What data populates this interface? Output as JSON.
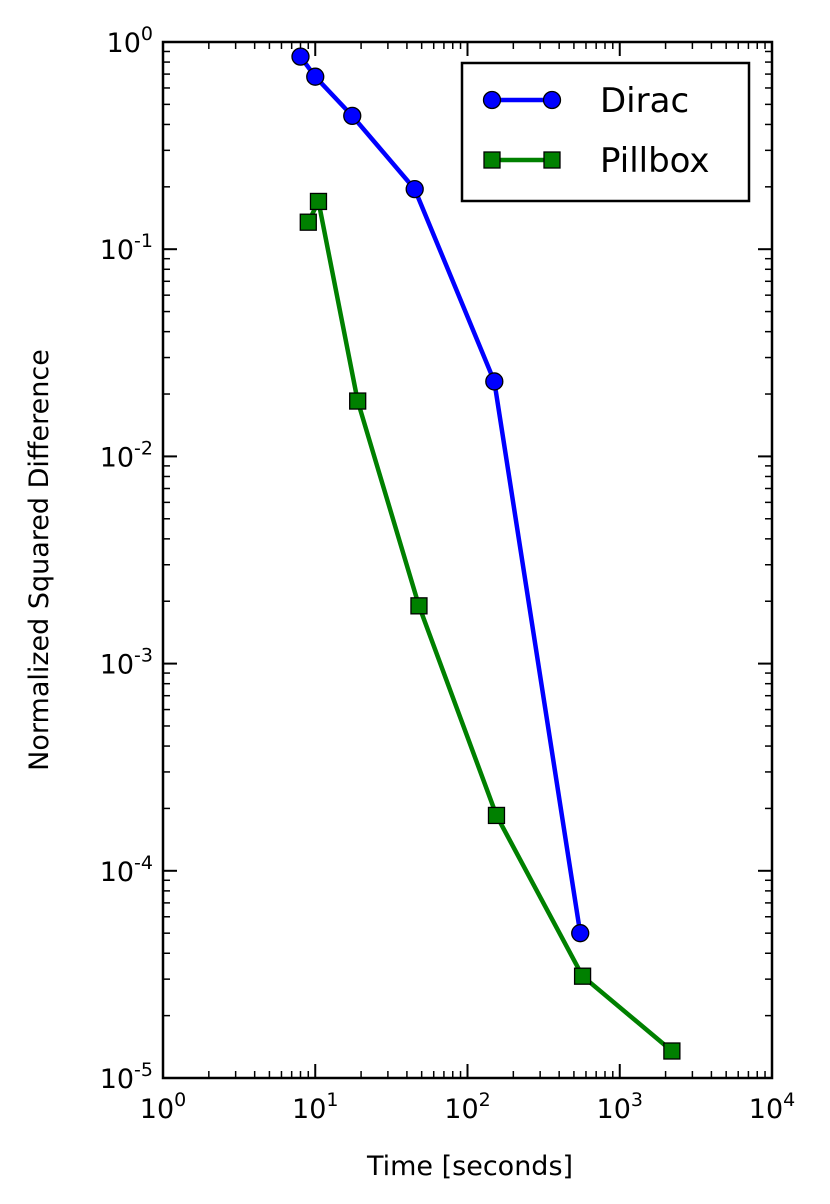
{
  "chart_data": {
    "type": "line",
    "xlabel": "Time [seconds]",
    "ylabel": "Normalized Squared Difference",
    "xscale": "log",
    "yscale": "log",
    "xlim": [
      1,
      10000
    ],
    "ylim": [
      1e-05,
      1
    ],
    "xticks": [
      {
        "value": 1,
        "base": "10",
        "exp": "0"
      },
      {
        "value": 10,
        "base": "10",
        "exp": "1"
      },
      {
        "value": 100,
        "base": "10",
        "exp": "2"
      },
      {
        "value": 1000,
        "base": "10",
        "exp": "3"
      },
      {
        "value": 10000,
        "base": "10",
        "exp": "4"
      }
    ],
    "yticks": [
      {
        "value": 1,
        "base": "10",
        "exp": "0"
      },
      {
        "value": 0.1,
        "base": "10",
        "exp": "-1"
      },
      {
        "value": 0.01,
        "base": "10",
        "exp": "-2"
      },
      {
        "value": 0.001,
        "base": "10",
        "exp": "-3"
      },
      {
        "value": 0.0001,
        "base": "10",
        "exp": "-4"
      },
      {
        "value": 1e-05,
        "base": "10",
        "exp": "-5"
      }
    ],
    "legend_position": "top-right",
    "grid": false,
    "series": [
      {
        "name": "Dirac",
        "color": "#0000ff",
        "marker": "circle",
        "x": [
          8,
          10,
          17.5,
          45,
          150,
          550
        ],
        "y": [
          0.85,
          0.68,
          0.44,
          0.195,
          0.023,
          5e-05
        ]
      },
      {
        "name": "Pillbox",
        "color": "#008000",
        "marker": "square",
        "x": [
          9,
          10.5,
          19,
          48,
          155,
          570,
          2200
        ],
        "y": [
          0.135,
          0.17,
          0.0185,
          0.0019,
          0.000185,
          3.1e-05,
          1.35e-05
        ]
      }
    ]
  }
}
